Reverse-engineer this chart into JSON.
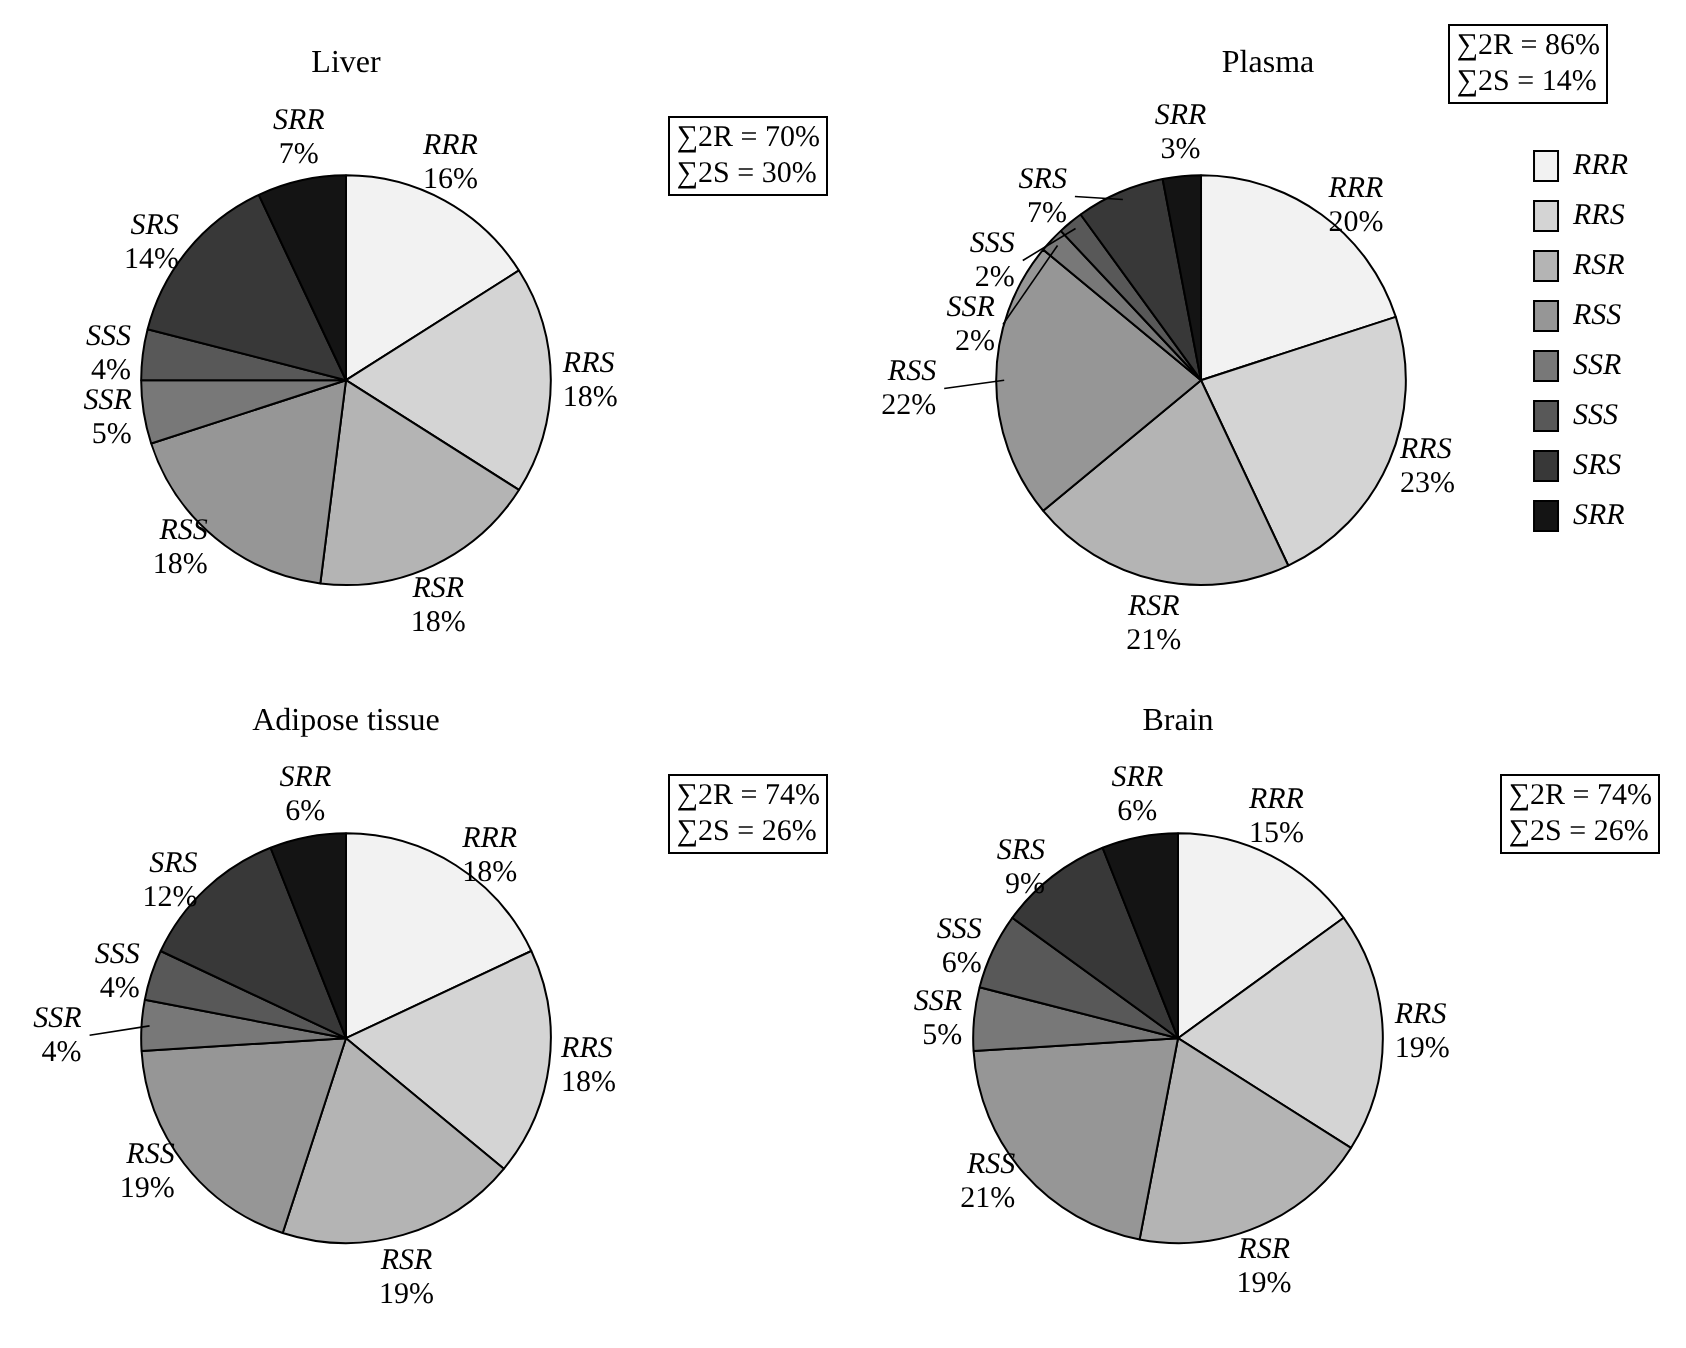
{
  "chart_data": [
    {
      "type": "pie",
      "title": "Liver",
      "categories": [
        "RRR",
        "RRS",
        "RSR",
        "RSS",
        "SSR",
        "SSS",
        "SRS",
        "SRR"
      ],
      "values": [
        16,
        18,
        18,
        18,
        5,
        4,
        14,
        7
      ],
      "value_labels": [
        "16%",
        "18%",
        "18%",
        "18%",
        "5%",
        "4%",
        "14%",
        "7%"
      ],
      "colors": [
        "#f2f2f2",
        "#d4d4d4",
        "#b4b4b4",
        "#969696",
        "#787878",
        "#585858",
        "#383838",
        "#141414"
      ],
      "annotations": [
        "∑2R = 70%",
        "∑2S = 30%"
      ],
      "legend": false
    },
    {
      "type": "pie",
      "title": "Plasma",
      "categories": [
        "RRR",
        "RRS",
        "RSR",
        "RSS",
        "SSR",
        "SSS",
        "SRS",
        "SRR"
      ],
      "values": [
        20,
        23,
        21,
        22,
        2,
        2,
        7,
        3
      ],
      "value_labels": [
        "20%",
        "23%",
        "21%",
        "22%",
        "2%",
        "2%",
        "7%",
        "3%"
      ],
      "colors": [
        "#f2f2f2",
        "#d4d4d4",
        "#b4b4b4",
        "#969696",
        "#787878",
        "#585858",
        "#383838",
        "#141414"
      ],
      "annotations": [
        "∑2R = 86%",
        "∑2S = 14%"
      ],
      "legend": "right"
    },
    {
      "type": "pie",
      "title": "Adipose tissue",
      "categories": [
        "RRR",
        "RRS",
        "RSR",
        "RSS",
        "SSR",
        "SSS",
        "SRS",
        "SRR"
      ],
      "values": [
        18,
        18,
        19,
        19,
        4,
        4,
        12,
        6
      ],
      "value_labels": [
        "18%",
        "18%",
        "19%",
        "19%",
        "4%",
        "4%",
        "12%",
        "6%"
      ],
      "colors": [
        "#f2f2f2",
        "#d4d4d4",
        "#b4b4b4",
        "#969696",
        "#787878",
        "#585858",
        "#383838",
        "#141414"
      ],
      "annotations": [
        "∑2R = 74%",
        "∑2S = 26%"
      ],
      "legend": false
    },
    {
      "type": "pie",
      "title": "Brain",
      "categories": [
        "RRR",
        "RRS",
        "RSR",
        "RSS",
        "SSR",
        "SSS",
        "SRS",
        "SRR"
      ],
      "values": [
        15,
        19,
        19,
        21,
        5,
        6,
        9,
        6
      ],
      "value_labels": [
        "15%",
        "19%",
        "19%",
        "21%",
        "5%",
        "6%",
        "9%",
        "6%"
      ],
      "colors": [
        "#f2f2f2",
        "#d4d4d4",
        "#b4b4b4",
        "#969696",
        "#787878",
        "#585858",
        "#383838",
        "#141414"
      ],
      "annotations": [
        "∑2R = 74%",
        "∑2S = 26%"
      ],
      "legend": false
    }
  ]
}
